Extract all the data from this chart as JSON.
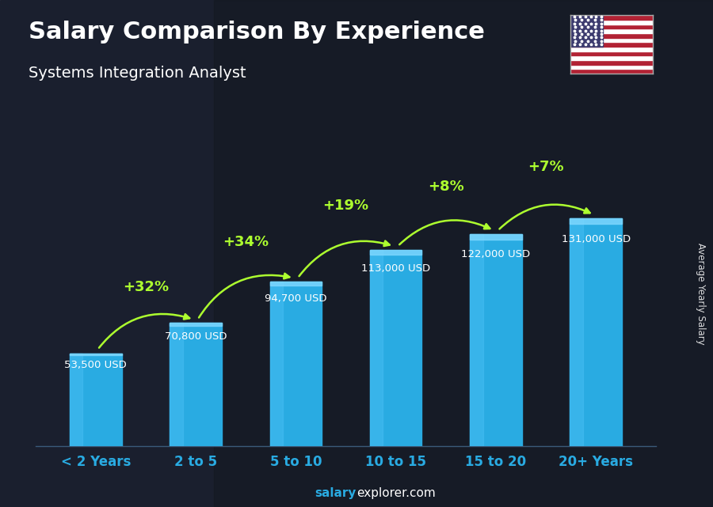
{
  "title": "Salary Comparison By Experience",
  "subtitle": "Systems Integration Analyst",
  "categories": [
    "< 2 Years",
    "2 to 5",
    "5 to 10",
    "10 to 15",
    "15 to 20",
    "20+ Years"
  ],
  "values": [
    53500,
    70800,
    94700,
    113000,
    122000,
    131000
  ],
  "value_labels": [
    "53,500 USD",
    "70,800 USD",
    "94,700 USD",
    "113,000 USD",
    "122,000 USD",
    "131,000 USD"
  ],
  "pct_changes": [
    "+32%",
    "+34%",
    "+19%",
    "+8%",
    "+7%"
  ],
  "bar_color": "#29ABE2",
  "bar_color_light": "#4FC3F7",
  "bar_color_dark": "#0288D1",
  "background_top": "#1a1a2e",
  "background_bottom": "#0d0d1a",
  "title_color": "#FFFFFF",
  "subtitle_color": "#FFFFFF",
  "label_color": "#FFFFFF",
  "xticklabel_color": "#29ABE2",
  "pct_color": "#ADFF2F",
  "value_label_color": "#FFFFFF",
  "ylabel_text": "Average Yearly Salary",
  "footer_salary": "salary",
  "footer_rest": "explorer.com",
  "ylim": [
    0,
    175000
  ],
  "bar_width": 0.52
}
